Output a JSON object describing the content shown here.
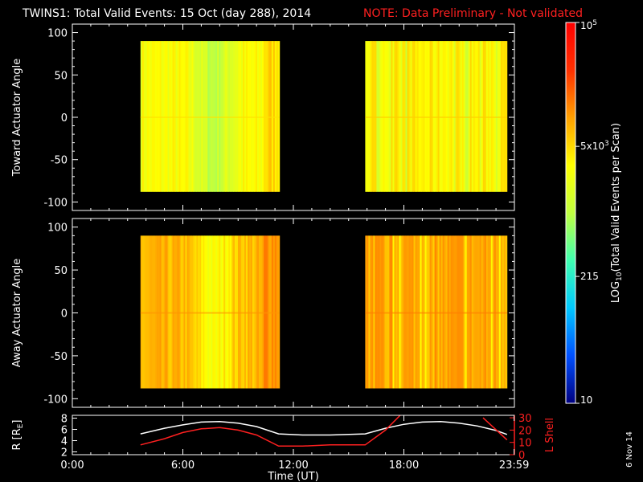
{
  "title": "TWINS1: Total Valid Events: 15 Oct (day 288), 2014",
  "note": "NOTE: Data Preliminary - Not validated",
  "date_stamp": "6 Nov 14",
  "colors": {
    "background": "#000000",
    "axes": "#ffffff",
    "note": "#ff2020",
    "r_line": "#ffffff",
    "lshell_line": "#ff2020"
  },
  "chart_data": [
    {
      "type": "heatmap",
      "panel": "top",
      "ylabel": "Toward Actuator Angle",
      "xlim": [
        0,
        24
      ],
      "ylim": [
        -110,
        110
      ],
      "yticks": [
        -100,
        -50,
        0,
        50,
        100
      ],
      "data_y_range": [
        -88,
        90
      ],
      "blocks": [
        {
          "x_start_hr": 3.7,
          "x_end_hr": 11.25,
          "mean_log_events": 3.45
        },
        {
          "x_start_hr": 15.9,
          "x_end_hr": 23.6,
          "mean_log_events": 3.55
        }
      ]
    },
    {
      "type": "heatmap",
      "panel": "middle",
      "ylabel": "Away Actuator Angle",
      "xlim": [
        0,
        24
      ],
      "ylim": [
        -110,
        110
      ],
      "yticks": [
        -100,
        -50,
        0,
        50,
        100
      ],
      "data_y_range": [
        -88,
        90
      ],
      "blocks": [
        {
          "x_start_hr": 3.7,
          "x_end_hr": 11.25,
          "mean_log_events": 3.85
        },
        {
          "x_start_hr": 15.9,
          "x_end_hr": 23.6,
          "mean_log_events": 3.95
        }
      ]
    },
    {
      "type": "line",
      "panel": "bottom",
      "ylabel": "R [R",
      "ylabel_sub": "E",
      "ylabel_end": "]",
      "ylabel_right": "L Shell",
      "xlabel": "Time (UT)",
      "xlim": [
        0,
        24
      ],
      "xticks": [
        0,
        6,
        12,
        18,
        23.983
      ],
      "xtick_labels": [
        "0:00",
        "6:00",
        "12:00",
        "18:00",
        "23:59"
      ],
      "ylim_left": [
        1.5,
        8.5
      ],
      "yticks_left": [
        2,
        4,
        6,
        8
      ],
      "ylim_right": [
        0,
        32
      ],
      "yticks_right": [
        0,
        10,
        20,
        30
      ],
      "series": [
        {
          "axis": "left",
          "x": [
            3.7,
            5,
            6,
            7,
            8,
            9,
            10,
            11.2,
            12.5,
            14,
            15.9,
            17,
            18,
            19,
            20,
            21,
            22,
            23,
            23.6
          ],
          "y": [
            5.2,
            6.2,
            6.8,
            7.3,
            7.4,
            7.1,
            6.5,
            5.2,
            5.0,
            5.0,
            5.2,
            6.2,
            6.9,
            7.3,
            7.4,
            7.1,
            6.6,
            5.8,
            5.1
          ]
        },
        {
          "axis": "right",
          "x": [
            3.7,
            5,
            6,
            7,
            8,
            9,
            10,
            11.2,
            12.5,
            14,
            15.9,
            17,
            17.8
          ],
          "y": [
            8,
            13,
            18,
            21,
            22,
            20,
            16,
            7,
            7,
            8,
            8,
            20,
            32
          ]
        },
        {
          "axis": "right",
          "x": [
            22.3,
            23.6
          ],
          "y": [
            30,
            12
          ]
        }
      ]
    },
    {
      "type": "colorbar",
      "label": "LOG",
      "label_sub": "10",
      "label_end": "(Total Valid  Events per Scan)",
      "scale": "log",
      "log_range": [
        1,
        5
      ],
      "stops": [
        "#000080",
        "#0050ff",
        "#00c8ff",
        "#40ffb0",
        "#c0ff40",
        "#ffff00",
        "#ffa000",
        "#ff3000",
        "#ff0000"
      ],
      "ticks": [
        {
          "log_value": 1,
          "label": "10"
        },
        {
          "log_value": 2.3324,
          "label": "215"
        },
        {
          "log_value": 3.699,
          "label": "5x10",
          "sup": "3"
        },
        {
          "log_value": 5,
          "label": "10",
          "sup": "5"
        }
      ]
    }
  ]
}
